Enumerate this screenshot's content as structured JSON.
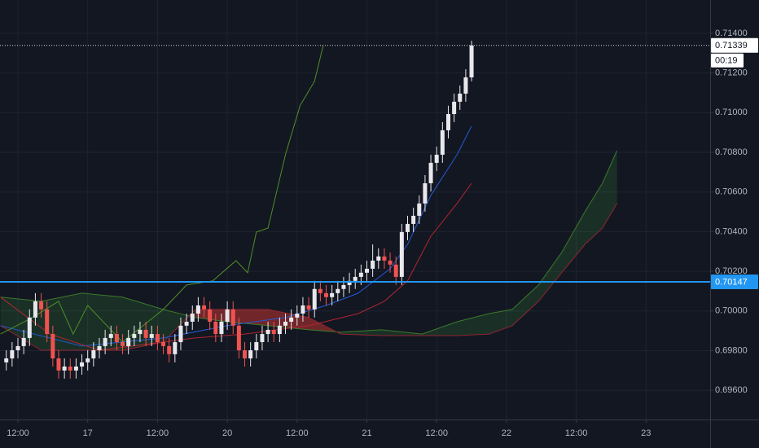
{
  "chart_data": {
    "type": "candlestick",
    "ylim": [
      0.69453,
      0.71568
    ],
    "yticks": [
      {
        "value": 0.696,
        "label": "0.69600"
      },
      {
        "value": 0.698,
        "label": "0.69800"
      },
      {
        "value": 0.7,
        "label": "0.70000"
      },
      {
        "value": 0.702,
        "label": "0.70200"
      },
      {
        "value": 0.704,
        "label": "0.70400"
      },
      {
        "value": 0.706,
        "label": "0.70600"
      },
      {
        "value": 0.708,
        "label": "0.70800"
      },
      {
        "value": 0.71,
        "label": "0.71000"
      },
      {
        "value": 0.712,
        "label": "0.71200"
      },
      {
        "value": 0.714,
        "label": "0.71400"
      }
    ],
    "xlim": [
      -3.08,
      119.02
    ],
    "xticks": [
      {
        "value": 0,
        "label": "12:00"
      },
      {
        "value": 12,
        "label": "17"
      },
      {
        "value": 24,
        "label": "12:00"
      },
      {
        "value": 36,
        "label": "20"
      },
      {
        "value": 48,
        "label": "12:00"
      },
      {
        "value": 60,
        "label": "21"
      },
      {
        "value": 72,
        "label": "12:00"
      },
      {
        "value": 84,
        "label": "22"
      },
      {
        "value": 96,
        "label": "12:00"
      },
      {
        "value": 108,
        "label": "23"
      }
    ],
    "grid": true,
    "up_color": "#e8e8ec",
    "down_color": "#ef5350",
    "x": [
      -2,
      -1,
      0,
      1,
      2,
      3,
      4,
      5,
      6,
      7,
      8,
      9,
      10,
      11,
      12,
      13,
      14,
      15,
      16,
      17,
      18,
      19,
      20,
      21,
      22,
      23,
      24,
      25,
      26,
      27,
      28,
      29,
      30,
      31,
      32,
      33,
      34,
      35,
      36,
      37,
      38,
      39,
      40,
      41,
      42,
      43,
      44,
      45,
      46,
      47,
      48,
      49,
      50,
      51,
      52,
      53,
      54,
      55,
      56,
      57,
      58,
      59,
      60,
      61,
      62,
      63,
      64,
      65,
      66,
      67,
      68,
      69,
      70,
      71,
      72,
      73,
      74,
      75,
      76,
      77,
      78
    ],
    "open": [
      0.69741,
      0.69761,
      0.69802,
      0.69823,
      0.69864,
      0.69967,
      0.70049,
      0.70008,
      0.69884,
      0.69761,
      0.697,
      0.6972,
      0.697,
      0.6972,
      0.69741,
      0.69761,
      0.69802,
      0.69823,
      0.69864,
      0.69884,
      0.69843,
      0.69823,
      0.69864,
      0.69884,
      0.69905,
      0.69864,
      0.69884,
      0.69843,
      0.69823,
      0.69782,
      0.69843,
      0.69926,
      0.69946,
      0.69987,
      0.70028,
      0.70008,
      0.69946,
      0.69884,
      0.69946,
      0.70008,
      0.69926,
      0.69802,
      0.69761,
      0.69802,
      0.69843,
      0.69884,
      0.69905,
      0.69884,
      0.69926,
      0.69946,
      0.69967,
      0.69987,
      0.70028,
      0.70008,
      0.70111,
      0.7009,
      0.7007,
      0.7009,
      0.70111,
      0.70131,
      0.70152,
      0.70172,
      0.70193,
      0.70213,
      0.70254,
      0.70275,
      0.70254,
      0.70234,
      0.70172,
      0.70398,
      0.70439,
      0.7048,
      0.70542,
      0.70644,
      0.70747,
      0.70788,
      0.70911,
      0.70993,
      0.71055,
      0.71096,
      0.71178
    ],
    "high": [
      0.69802,
      0.69843,
      0.69864,
      0.69905,
      0.70008,
      0.7009,
      0.7009,
      0.70049,
      0.69926,
      0.69802,
      0.69761,
      0.69761,
      0.69761,
      0.69782,
      0.69802,
      0.69843,
      0.69864,
      0.69905,
      0.69926,
      0.69926,
      0.69884,
      0.69905,
      0.69926,
      0.69946,
      0.69946,
      0.69926,
      0.69926,
      0.69884,
      0.69864,
      0.69884,
      0.69967,
      0.69987,
      0.70028,
      0.7007,
      0.7007,
      0.70049,
      0.69987,
      0.69987,
      0.70049,
      0.70049,
      0.69967,
      0.69843,
      0.69843,
      0.69884,
      0.69926,
      0.69946,
      0.69946,
      0.69967,
      0.69987,
      0.70008,
      0.70028,
      0.7007,
      0.7007,
      0.70152,
      0.70152,
      0.70131,
      0.70131,
      0.70152,
      0.70172,
      0.70193,
      0.70213,
      0.70234,
      0.70254,
      0.70336,
      0.70316,
      0.70316,
      0.70295,
      0.70275,
      0.70439,
      0.7048,
      0.70521,
      0.70583,
      0.70685,
      0.70788,
      0.70829,
      0.70952,
      0.71035,
      0.71096,
      0.71137,
      0.71219,
      0.71363
    ],
    "low": [
      0.697,
      0.6972,
      0.69761,
      0.69782,
      0.69823,
      0.69926,
      0.69967,
      0.69843,
      0.6972,
      0.69659,
      0.69659,
      0.69659,
      0.69659,
      0.69679,
      0.697,
      0.6972,
      0.69761,
      0.69782,
      0.69823,
      0.69802,
      0.69782,
      0.69782,
      0.69823,
      0.69843,
      0.69823,
      0.69823,
      0.69802,
      0.69782,
      0.69741,
      0.69741,
      0.69802,
      0.69884,
      0.69905,
      0.69946,
      0.69967,
      0.69905,
      0.69843,
      0.69843,
      0.69905,
      0.69884,
      0.69761,
      0.6972,
      0.6972,
      0.69761,
      0.69802,
      0.69843,
      0.69843,
      0.69843,
      0.69884,
      0.69905,
      0.69926,
      0.69946,
      0.69967,
      0.69967,
      0.70049,
      0.70028,
      0.70028,
      0.70049,
      0.7007,
      0.7009,
      0.70111,
      0.70131,
      0.70152,
      0.70172,
      0.70213,
      0.70213,
      0.70193,
      0.70131,
      0.70131,
      0.70357,
      0.70398,
      0.70439,
      0.70501,
      0.70603,
      0.70706,
      0.70747,
      0.7087,
      0.70952,
      0.71014,
      0.71055,
      0.71158
    ],
    "close": [
      0.69761,
      0.69802,
      0.69823,
      0.69864,
      0.69967,
      0.70049,
      0.70008,
      0.69884,
      0.69761,
      0.697,
      0.6972,
      0.697,
      0.6972,
      0.69741,
      0.69761,
      0.69802,
      0.69823,
      0.69864,
      0.69884,
      0.69843,
      0.69823,
      0.69864,
      0.69884,
      0.69905,
      0.69864,
      0.69884,
      0.69843,
      0.69823,
      0.69782,
      0.69843,
      0.69926,
      0.69946,
      0.69987,
      0.70028,
      0.70008,
      0.69946,
      0.69884,
      0.69946,
      0.70008,
      0.69926,
      0.69802,
      0.69761,
      0.69802,
      0.69843,
      0.69884,
      0.69905,
      0.69884,
      0.69926,
      0.69946,
      0.69967,
      0.69987,
      0.70028,
      0.70008,
      0.70111,
      0.7009,
      0.7007,
      0.7009,
      0.70111,
      0.70131,
      0.70152,
      0.70172,
      0.70193,
      0.70213,
      0.70254,
      0.70275,
      0.70254,
      0.70234,
      0.70172,
      0.70398,
      0.70439,
      0.7048,
      0.70542,
      0.70644,
      0.70747,
      0.70788,
      0.70911,
      0.70993,
      0.71055,
      0.71096,
      0.71178,
      0.71339
    ],
    "cloud": {
      "x": [
        -3,
        4,
        11,
        18,
        25,
        30.5,
        36,
        43,
        50,
        55.5,
        62.5,
        69.5,
        75.5,
        81,
        85,
        89.5,
        93.5,
        97.5,
        100.5,
        103
      ],
      "span_a": [
        0.7007,
        0.70049,
        0.7009,
        0.7007,
        0.70008,
        0.69967,
        0.69946,
        0.69926,
        0.69905,
        0.69893,
        0.69905,
        0.69884,
        0.69946,
        0.69987,
        0.70008,
        0.70131,
        0.70295,
        0.70501,
        0.70644,
        0.70809
      ],
      "span_b": [
        0.69926,
        0.69802,
        0.69802,
        0.69802,
        0.69843,
        0.70008,
        0.70008,
        0.70008,
        0.69967,
        0.69884,
        0.69876,
        0.69876,
        0.69876,
        0.69884,
        0.69926,
        0.70049,
        0.70193,
        0.70336,
        0.70418,
        0.70542
      ],
      "a_color": "#3b7a2a",
      "b_color": "#8f2430",
      "up_fill": "rgba(56,142,60,0.22)",
      "down_fill": "rgba(229,57,53,0.45)"
    },
    "series": [
      {
        "color": "#2459d4",
        "x": [
          -3,
          11,
          25,
          36,
          46,
          53,
          58.5,
          64,
          67,
          71,
          75.5,
          78
        ],
        "values": [
          0.69926,
          0.69823,
          0.69864,
          0.69926,
          0.69967,
          0.70028,
          0.7009,
          0.70213,
          0.70336,
          0.70583,
          0.70788,
          0.70932
        ]
      },
      {
        "color": "#b3262f",
        "x": [
          -3,
          5.5,
          14,
          30.5,
          39,
          50,
          58.5,
          63,
          67,
          71,
          75.5,
          78
        ],
        "values": [
          0.7007,
          0.69884,
          0.69802,
          0.69864,
          0.69884,
          0.69926,
          0.69987,
          0.70049,
          0.70152,
          0.70377,
          0.70542,
          0.70644
        ]
      },
      {
        "color": "#4f8f25",
        "x": [
          -3,
          2.5,
          7,
          9.5,
          12,
          18,
          25,
          29,
          33.5,
          37.5,
          39.5,
          41,
          43,
          46,
          48.5,
          51,
          52.5
        ],
        "values": [
          0.69884,
          0.69967,
          0.70049,
          0.69884,
          0.70028,
          0.69843,
          0.70008,
          0.70131,
          0.70152,
          0.70254,
          0.70193,
          0.70398,
          0.70418,
          0.70788,
          0.71035,
          0.71158,
          0.71339
        ]
      }
    ],
    "marker_lines": [
      {
        "value": 0.71339,
        "color": "#d1d4dc",
        "label_bg": "#ffffff",
        "label_fg": "#131722",
        "dotted": true
      },
      {
        "value": 0.70147,
        "color": "#2196f3",
        "label_bg": "#2196f3",
        "label_fg": "#ffffff",
        "dotted": false
      }
    ],
    "countdown": "00:19"
  }
}
